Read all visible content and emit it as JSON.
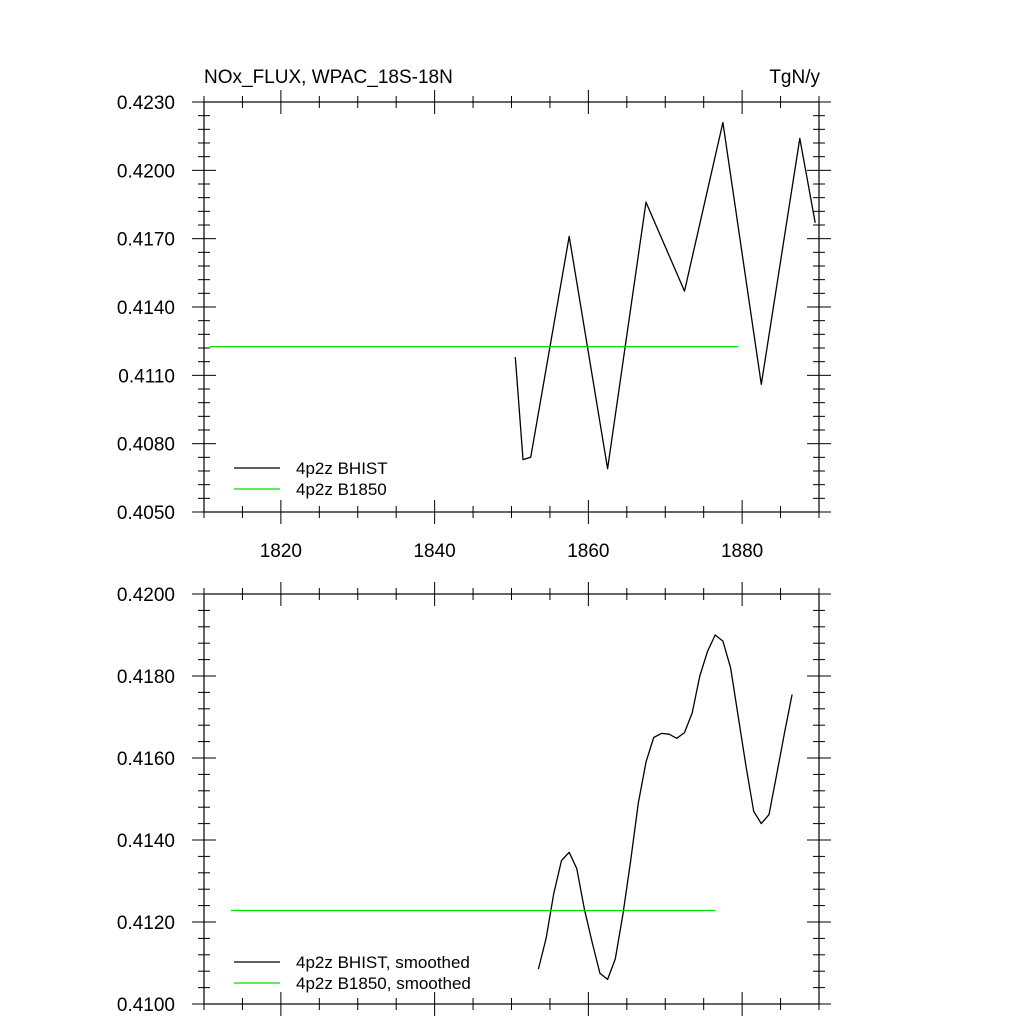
{
  "chart_data": [
    {
      "type": "line",
      "title_left": "NOx_FLUX, WPAC_18S-18N",
      "title_right": "TgN/y",
      "xlim": [
        1810,
        1890
      ],
      "ylim": [
        0.405,
        0.423
      ],
      "x_ticks": [
        1820,
        1840,
        1860,
        1880
      ],
      "x_tick_labels": [
        "1820",
        "1840",
        "1860",
        "1880"
      ],
      "y_ticks": [
        0.405,
        0.408,
        0.411,
        0.414,
        0.417,
        0.42,
        0.423
      ],
      "y_tick_labels": [
        "0.4050",
        "0.4080",
        "0.4110",
        "0.4140",
        "0.4170",
        "0.4200",
        "0.4230"
      ],
      "legend_position": "bottom-left",
      "series": [
        {
          "name": "4p2z BHIST",
          "color": "#000000",
          "x": [
            1850.5,
            1851.5,
            1852.5,
            1857.5,
            1862.5,
            1867.5,
            1872.5,
            1877.5,
            1882.5,
            1887.5,
            1889.5
          ],
          "y": [
            0.4118,
            0.4073,
            0.4074,
            0.4171,
            0.4069,
            0.4186,
            0.4147,
            0.4221,
            0.4106,
            0.4214,
            0.4177
          ]
        },
        {
          "name": "4p2z B1850",
          "color": "#00e000",
          "x": [
            1810.5,
            1811,
            1879.5
          ],
          "y": [
            0.41221,
            0.41226,
            0.41226
          ]
        }
      ]
    },
    {
      "type": "line",
      "xlim": [
        1810,
        1890
      ],
      "ylim": [
        0.41,
        0.42
      ],
      "y_ticks": [
        0.41,
        0.412,
        0.414,
        0.416,
        0.418,
        0.42
      ],
      "y_tick_labels": [
        "0.4100",
        "0.4120",
        "0.4140",
        "0.4160",
        "0.4180",
        "0.4200"
      ],
      "legend_position": "bottom-left",
      "series": [
        {
          "name": "4p2z BHIST, smoothed",
          "color": "#000000",
          "x": [
            1853.5,
            1854.5,
            1855.5,
            1856.5,
            1857.5,
            1858.5,
            1859.5,
            1860.5,
            1861.5,
            1862.5,
            1863.5,
            1864.5,
            1865.5,
            1866.5,
            1867.5,
            1868.5,
            1869.5,
            1870.5,
            1871.5,
            1872.5,
            1873.5,
            1874.5,
            1875.5,
            1876.5,
            1877.5,
            1878.5,
            1879.5,
            1880.5,
            1881.5,
            1882.5,
            1883.5,
            1884.5,
            1885.5,
            1886.5
          ],
          "y": [
            0.41085,
            0.4116,
            0.4127,
            0.4135,
            0.4137,
            0.4133,
            0.4123,
            0.4115,
            0.41075,
            0.4106,
            0.4111,
            0.4122,
            0.4135,
            0.4149,
            0.4159,
            0.4165,
            0.4166,
            0.41658,
            0.41648,
            0.41662,
            0.4171,
            0.418,
            0.4186,
            0.419,
            0.41885,
            0.4182,
            0.417,
            0.4158,
            0.4147,
            0.4144,
            0.41462,
            0.4156,
            0.4166,
            0.41755
          ]
        },
        {
          "name": "4p2z B1850, smoothed",
          "color": "#00e000",
          "x": [
            1813.5,
            1876.5
          ],
          "y": [
            0.41228,
            0.41228
          ]
        }
      ]
    }
  ]
}
